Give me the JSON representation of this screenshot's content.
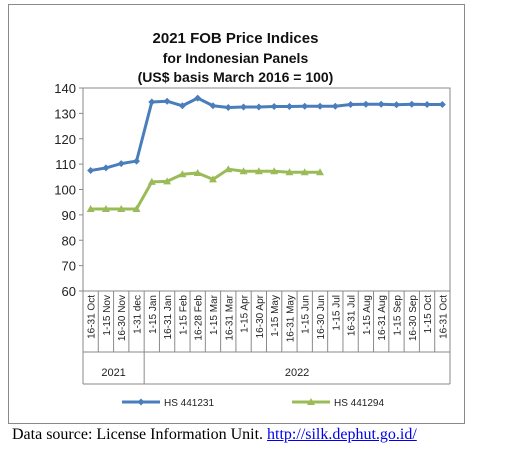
{
  "chart_data": {
    "type": "line",
    "title_lines": [
      "2021 FOB Price Indices",
      "for Indonesian Panels",
      "(US$ basis March 2016 = 100)"
    ],
    "xlabel": "",
    "ylabel": "",
    "ylim": [
      60,
      140
    ],
    "yticks": [
      60,
      70,
      80,
      90,
      100,
      110,
      120,
      130,
      140
    ],
    "grid": false,
    "legend_position": "bottom",
    "categories": [
      "16-31 Oct",
      "1-15 Nov",
      "16-30 Nov",
      "1-31 dec",
      "1-15 Jan",
      "16-31 Jan",
      "1-15 Feb",
      "16-28 Feb",
      "1-15 Mar",
      "16-31 Mar",
      "1-15 Apr",
      "16-30 Apr",
      "1-15 May",
      "16-31 May",
      "1-15 Jun",
      "16-30 Jun",
      "1-15 Jul",
      "16-31 Jul",
      "1-15 Aug",
      "16-31 Aug",
      "1-15 Sep",
      "16-30 Sep",
      "1-15 Oct",
      "16-31 Oct"
    ],
    "year_groups": [
      {
        "label": "2021",
        "start": 0,
        "end": 3
      },
      {
        "label": "2022",
        "start": 4,
        "end": 23
      }
    ],
    "series": [
      {
        "name": "HS 441231",
        "color": "#4a7ebb",
        "marker": "diamond",
        "values": [
          107.5,
          108.5,
          110.2,
          111.2,
          134.5,
          134.8,
          133.0,
          136.0,
          133.0,
          132.3,
          132.5,
          132.5,
          132.7,
          132.7,
          132.8,
          132.8,
          132.8,
          133.5,
          133.6,
          133.6,
          133.4,
          133.6,
          133.5,
          133.5
        ]
      },
      {
        "name": "HS 441294",
        "color": "#9bbb59",
        "marker": "triangle",
        "values": [
          92.3,
          92.3,
          92.3,
          92.3,
          103.0,
          103.2,
          106.0,
          106.5,
          104.0,
          108.0,
          107.2,
          107.2,
          107.2,
          106.8,
          106.8,
          106.8,
          null,
          null,
          null,
          null,
          null,
          null,
          null,
          null
        ]
      }
    ]
  },
  "source": {
    "prefix": "Data source: License Information Unit. ",
    "link": "http://silk.dephut.go.id/"
  }
}
